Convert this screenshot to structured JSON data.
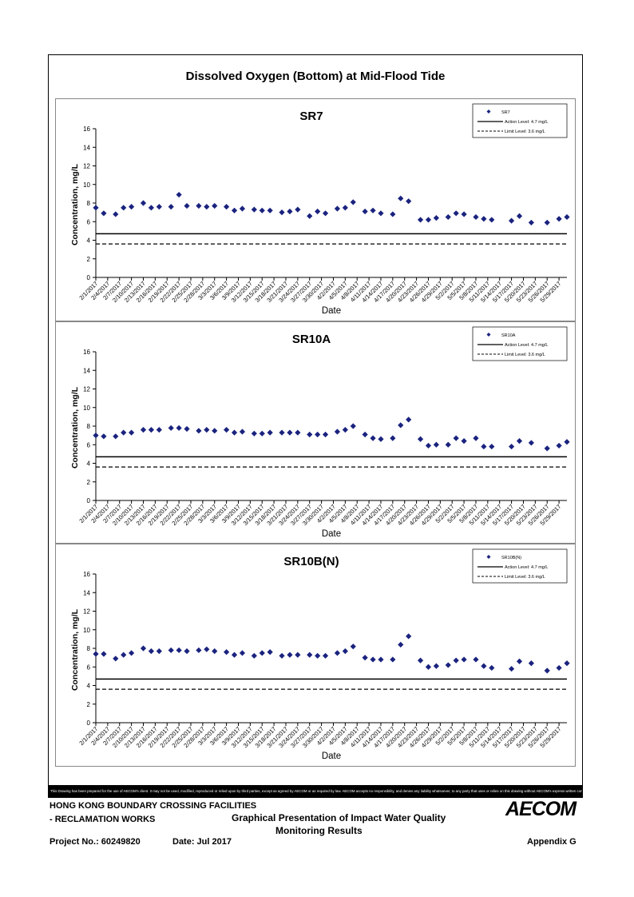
{
  "page_title": "Dissolved Oxygen (Bottom) at Mid-Flood Tide",
  "disclaimer": "This Drawing has been prepared for the use of AECOM's client. It may not be used, modified, reproduced or relied upon by third parties, except as agreed by AECOM or as required by law. AECOM accepts no responsibility, and denies any liability whatsoever, to any party that uses or relies on this drawing without AECOM's express written consent.",
  "footer": {
    "project_line1": "HONG KONG BOUNDARY CROSSING FACILITIES",
    "project_line2": "- RECLAMATION WORKS",
    "description_line1": "Graphical Presentation of Impact Water Quality",
    "description_line2": "Monitoring Results",
    "project_no": "Project No.: 60249820",
    "date": "Date: Jul 2017",
    "appendix": "Appendix G",
    "logo": "AECOM"
  },
  "chart_data": [
    {
      "type": "scatter",
      "title": "SR7",
      "xlabel": "Date",
      "ylabel": "Concentration, mg/L",
      "ylim": [
        0,
        16
      ],
      "yticks": [
        0,
        2,
        4,
        6,
        8,
        10,
        12,
        14,
        16
      ],
      "xticks": [
        "2/1/2017",
        "2/4/2017",
        "2/7/2017",
        "2/10/2017",
        "2/13/2017",
        "2/16/2017",
        "2/19/2017",
        "2/22/2017",
        "2/25/2017",
        "2/28/2017",
        "3/3/2017",
        "3/6/2017",
        "3/9/2017",
        "3/12/2017",
        "3/15/2017",
        "3/18/2017",
        "3/21/2017",
        "3/24/2017",
        "3/27/2017",
        "3/30/2017",
        "4/2/2017",
        "4/5/2017",
        "4/8/2017",
        "4/11/2017",
        "4/14/2017",
        "4/17/2017",
        "4/20/2017",
        "4/23/2017",
        "4/26/2017",
        "4/29/2017",
        "5/2/2017",
        "5/5/2017",
        "5/8/2017",
        "5/11/2017",
        "5/14/2017",
        "5/17/2017",
        "5/20/2017",
        "5/23/2017",
        "5/26/2017",
        "5/29/2017"
      ],
      "x_range": [
        "2/1/2017",
        "5/31/2017"
      ],
      "legend_position": "top-right",
      "series": [
        {
          "name": "SR7",
          "marker": "diamond",
          "color": "#1a237e",
          "x": [
            "2/1/2017",
            "2/3/2017",
            "2/6/2017",
            "2/8/2017",
            "2/10/2017",
            "2/13/2017",
            "2/15/2017",
            "2/17/2017",
            "2/20/2017",
            "2/22/2017",
            "2/24/2017",
            "2/27/2017",
            "3/1/2017",
            "3/3/2017",
            "3/6/2017",
            "3/8/2017",
            "3/10/2017",
            "3/13/2017",
            "3/15/2017",
            "3/17/2017",
            "3/20/2017",
            "3/22/2017",
            "3/24/2017",
            "3/27/2017",
            "3/29/2017",
            "3/31/2017",
            "4/3/2017",
            "4/5/2017",
            "4/7/2017",
            "4/10/2017",
            "4/12/2017",
            "4/14/2017",
            "4/17/2017",
            "4/19/2017",
            "4/21/2017",
            "4/24/2017",
            "4/26/2017",
            "4/28/2017",
            "5/1/2017",
            "5/3/2017",
            "5/5/2017",
            "5/8/2017",
            "5/10/2017",
            "5/12/2017",
            "5/17/2017",
            "5/19/2017",
            "5/22/2017",
            "5/26/2017",
            "5/29/2017",
            "5/31/2017"
          ],
          "y": [
            7.5,
            6.9,
            6.8,
            7.5,
            7.6,
            8.0,
            7.5,
            7.6,
            7.6,
            8.9,
            7.7,
            7.7,
            7.6,
            7.7,
            7.6,
            7.2,
            7.4,
            7.3,
            7.2,
            7.2,
            7.0,
            7.1,
            7.3,
            6.6,
            7.1,
            6.9,
            7.4,
            7.5,
            8.1,
            7.1,
            7.2,
            6.9,
            6.8,
            8.5,
            8.2,
            6.2,
            6.2,
            6.4,
            6.5,
            6.9,
            6.8,
            6.5,
            6.3,
            6.2,
            6.1,
            6.6,
            5.9,
            5.9,
            6.3,
            6.5
          ]
        },
        {
          "name": "Action Level: 4.7 mg/L",
          "type": "line",
          "style": "solid",
          "value": 4.7
        },
        {
          "name": "Limit Level: 3.6 mg/L",
          "type": "line",
          "style": "dashed",
          "value": 3.6
        }
      ]
    },
    {
      "type": "scatter",
      "title": "SR10A",
      "xlabel": "Date",
      "ylabel": "Concentration, mg/L",
      "ylim": [
        0,
        16
      ],
      "yticks": [
        0,
        2,
        4,
        6,
        8,
        10,
        12,
        14,
        16
      ],
      "xticks": [
        "2/1/2017",
        "2/4/2017",
        "2/7/2017",
        "2/10/2017",
        "2/13/2017",
        "2/16/2017",
        "2/19/2017",
        "2/22/2017",
        "2/25/2017",
        "2/28/2017",
        "3/3/2017",
        "3/6/2017",
        "3/9/2017",
        "3/12/2017",
        "3/15/2017",
        "3/18/2017",
        "3/21/2017",
        "3/24/2017",
        "3/27/2017",
        "3/30/2017",
        "4/2/2017",
        "4/5/2017",
        "4/8/2017",
        "4/11/2017",
        "4/14/2017",
        "4/17/2017",
        "4/20/2017",
        "4/23/2017",
        "4/26/2017",
        "4/29/2017",
        "5/2/2017",
        "5/5/2017",
        "5/8/2017",
        "5/11/2017",
        "5/14/2017",
        "5/17/2017",
        "5/20/2017",
        "5/23/2017",
        "5/26/2017",
        "5/29/2017"
      ],
      "x_range": [
        "2/1/2017",
        "5/31/2017"
      ],
      "legend_position": "top-right",
      "series": [
        {
          "name": "SR10A",
          "marker": "diamond",
          "color": "#1a237e",
          "x": [
            "2/1/2017",
            "2/3/2017",
            "2/6/2017",
            "2/8/2017",
            "2/10/2017",
            "2/13/2017",
            "2/15/2017",
            "2/17/2017",
            "2/20/2017",
            "2/22/2017",
            "2/24/2017",
            "2/27/2017",
            "3/1/2017",
            "3/3/2017",
            "3/6/2017",
            "3/8/2017",
            "3/10/2017",
            "3/13/2017",
            "3/15/2017",
            "3/17/2017",
            "3/20/2017",
            "3/22/2017",
            "3/24/2017",
            "3/27/2017",
            "3/29/2017",
            "3/31/2017",
            "4/3/2017",
            "4/5/2017",
            "4/7/2017",
            "4/10/2017",
            "4/12/2017",
            "4/14/2017",
            "4/17/2017",
            "4/19/2017",
            "4/21/2017",
            "4/24/2017",
            "4/26/2017",
            "4/28/2017",
            "5/1/2017",
            "5/3/2017",
            "5/5/2017",
            "5/8/2017",
            "5/10/2017",
            "5/12/2017",
            "5/17/2017",
            "5/19/2017",
            "5/22/2017",
            "5/26/2017",
            "5/29/2017",
            "5/31/2017"
          ],
          "y": [
            7.0,
            6.9,
            6.9,
            7.3,
            7.3,
            7.6,
            7.6,
            7.6,
            7.8,
            7.8,
            7.7,
            7.5,
            7.6,
            7.5,
            7.6,
            7.3,
            7.4,
            7.2,
            7.2,
            7.3,
            7.3,
            7.3,
            7.3,
            7.1,
            7.1,
            7.1,
            7.4,
            7.6,
            8.0,
            7.1,
            6.7,
            6.6,
            6.7,
            8.1,
            8.7,
            6.6,
            5.9,
            6.0,
            6.0,
            6.7,
            6.4,
            6.7,
            5.8,
            5.8,
            5.8,
            6.4,
            6.2,
            5.6,
            5.9,
            6.3
          ]
        },
        {
          "name": "Action Level: 4.7 mg/L",
          "type": "line",
          "style": "solid",
          "value": 4.7
        },
        {
          "name": "Limit Level: 3.6 mg/L",
          "type": "line",
          "style": "dashed",
          "value": 3.6
        }
      ]
    },
    {
      "type": "scatter",
      "title": "SR10B(N)",
      "xlabel": "Date",
      "ylabel": "Concentration, mg/L",
      "ylim": [
        0,
        16
      ],
      "yticks": [
        0,
        2,
        4,
        6,
        8,
        10,
        12,
        14,
        16
      ],
      "xticks": [
        "2/1/2017",
        "2/4/2017",
        "2/7/2017",
        "2/10/2017",
        "2/13/2017",
        "2/16/2017",
        "2/19/2017",
        "2/22/2017",
        "2/25/2017",
        "2/28/2017",
        "3/3/2017",
        "3/6/2017",
        "3/9/2017",
        "3/12/2017",
        "3/15/2017",
        "3/18/2017",
        "3/21/2017",
        "3/24/2017",
        "3/27/2017",
        "3/30/2017",
        "4/2/2017",
        "4/5/2017",
        "4/8/2017",
        "4/11/2017",
        "4/14/2017",
        "4/17/2017",
        "4/20/2017",
        "4/23/2017",
        "4/26/2017",
        "4/29/2017",
        "5/2/2017",
        "5/5/2017",
        "5/8/2017",
        "5/11/2017",
        "5/14/2017",
        "5/17/2017",
        "5/20/2017",
        "5/23/2017",
        "5/26/2017",
        "5/29/2017"
      ],
      "x_range": [
        "2/1/2017",
        "5/31/2017"
      ],
      "legend_position": "top-right",
      "series": [
        {
          "name": "SR10B(N)",
          "marker": "diamond",
          "color": "#1a237e",
          "x": [
            "2/1/2017",
            "2/3/2017",
            "2/6/2017",
            "2/8/2017",
            "2/10/2017",
            "2/13/2017",
            "2/15/2017",
            "2/17/2017",
            "2/20/2017",
            "2/22/2017",
            "2/24/2017",
            "2/27/2017",
            "3/1/2017",
            "3/3/2017",
            "3/6/2017",
            "3/8/2017",
            "3/10/2017",
            "3/13/2017",
            "3/15/2017",
            "3/17/2017",
            "3/20/2017",
            "3/22/2017",
            "3/24/2017",
            "3/27/2017",
            "3/29/2017",
            "3/31/2017",
            "4/3/2017",
            "4/5/2017",
            "4/7/2017",
            "4/10/2017",
            "4/12/2017",
            "4/14/2017",
            "4/17/2017",
            "4/19/2017",
            "4/21/2017",
            "4/24/2017",
            "4/26/2017",
            "4/28/2017",
            "5/1/2017",
            "5/3/2017",
            "5/5/2017",
            "5/8/2017",
            "5/10/2017",
            "5/12/2017",
            "5/17/2017",
            "5/19/2017",
            "5/22/2017",
            "5/26/2017",
            "5/29/2017",
            "5/31/2017"
          ],
          "y": [
            7.4,
            7.4,
            6.9,
            7.3,
            7.5,
            8.0,
            7.7,
            7.7,
            7.8,
            7.8,
            7.7,
            7.8,
            7.9,
            7.7,
            7.6,
            7.3,
            7.5,
            7.2,
            7.5,
            7.6,
            7.2,
            7.3,
            7.3,
            7.3,
            7.2,
            7.2,
            7.5,
            7.7,
            8.2,
            7.0,
            6.8,
            6.8,
            6.8,
            8.4,
            9.3,
            6.7,
            6.0,
            6.1,
            6.2,
            6.7,
            6.8,
            6.8,
            6.1,
            5.9,
            5.8,
            6.6,
            6.4,
            5.6,
            5.9,
            6.4
          ]
        },
        {
          "name": "Action Level: 4.7 mg/L",
          "type": "line",
          "style": "solid",
          "value": 4.7
        },
        {
          "name": "Limit Level: 3.6 mg/L",
          "type": "line",
          "style": "dashed",
          "value": 3.6
        }
      ]
    }
  ]
}
